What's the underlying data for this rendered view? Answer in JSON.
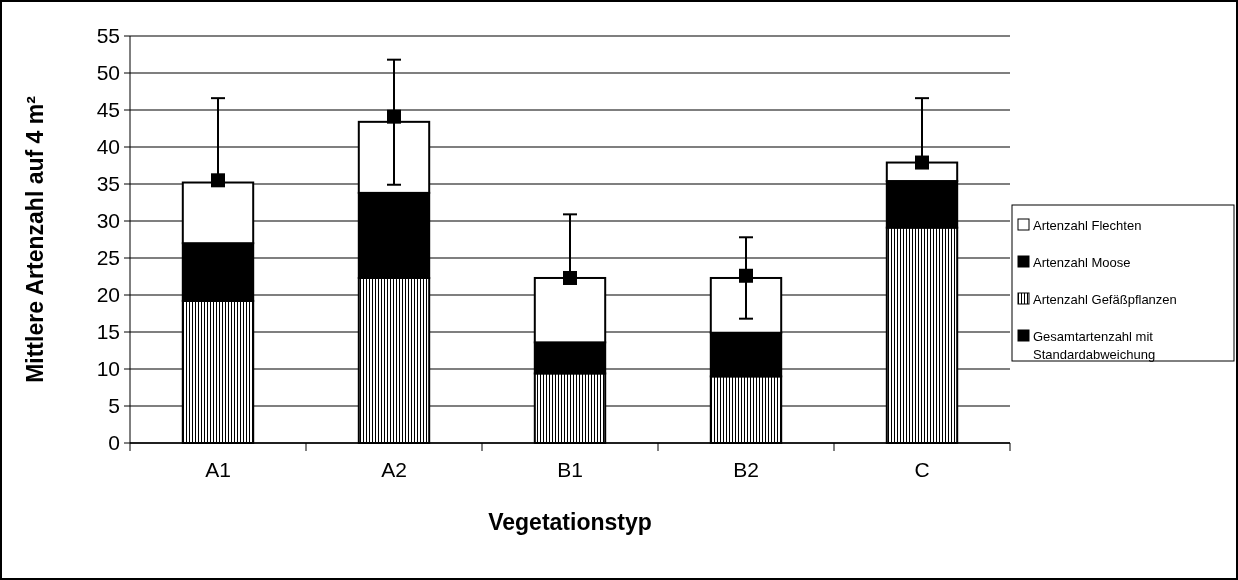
{
  "chart_data": {
    "type": "bar",
    "stacked": true,
    "xlabel": "Vegetationstyp",
    "ylabel": "Mittlere Artenzahl auf 4 m²",
    "categories": [
      "A1",
      "A2",
      "B1",
      "B2",
      "C"
    ],
    "ylim": [
      0,
      55
    ],
    "yticks": [
      0,
      5,
      10,
      15,
      20,
      25,
      30,
      35,
      40,
      45,
      50,
      55
    ],
    "grid": "y",
    "legend": "right",
    "series": [
      {
        "name": "Artenzahl Gefäßpflanzen",
        "color": "#000000",
        "values": [
          19.2,
          22.3,
          9.4,
          9.0,
          29.1
        ]
      },
      {
        "name": "Artenzahl Moose",
        "color": "#000000",
        "values": [
          7.8,
          11.5,
          4.2,
          5.9,
          6.3
        ]
      },
      {
        "name": "Artenzahl Flechten",
        "color": "#ffffff",
        "values": [
          8.2,
          9.6,
          8.7,
          7.4,
          2.5
        ]
      },
      {
        "name": "Gesamtartenzahl mit Standardabweichung",
        "type": "scatter",
        "marker": "square",
        "color": "#000000",
        "x": [
          "A1",
          "A2",
          "B1",
          "B2",
          "C"
        ],
        "values": [
          35.5,
          44.1,
          22.3,
          22.6,
          37.9
        ],
        "errors": [
          [
            35.5,
            46.6
          ],
          [
            34.9,
            51.8
          ],
          [
            22.3,
            30.9
          ],
          [
            16.8,
            27.8
          ],
          [
            37.9,
            46.6
          ]
        ]
      }
    ]
  }
}
